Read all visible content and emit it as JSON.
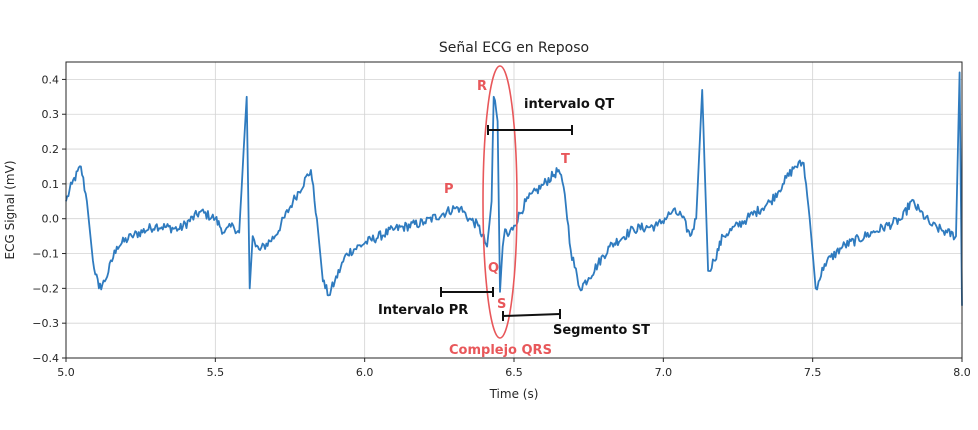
{
  "chart_data": {
    "type": "line",
    "title": "Señal ECG en Reposo",
    "xlabel": "Time (s)",
    "ylabel": "ECG Signal (mV)",
    "xlim": [
      5.0,
      8.0
    ],
    "ylim": [
      -0.4,
      0.45
    ],
    "xticks": [
      5.0,
      5.5,
      6.0,
      6.5,
      7.0,
      7.5,
      8.0
    ],
    "xtick_labels": [
      "5.0",
      "5.5",
      "6.0",
      "6.5",
      "7.0",
      "7.5",
      "8.0"
    ],
    "yticks": [
      -0.4,
      -0.3,
      -0.2,
      -0.1,
      0.0,
      0.1,
      0.2,
      0.3,
      0.4
    ],
    "ytick_labels": [
      "−0.4",
      "−0.3",
      "−0.2",
      "−0.1",
      "0.0",
      "0.1",
      "0.2",
      "0.3",
      "0.4"
    ],
    "grid": true,
    "line_color": "#2f7bbf",
    "annotation_color": "#e8575a",
    "series": [
      {
        "x": [
          5.0,
          5.02,
          5.05,
          5.07,
          5.09,
          5.11,
          5.13,
          5.17,
          5.22,
          5.3,
          5.38,
          5.45,
          5.5,
          5.53,
          5.56,
          5.58,
          5.595,
          5.605,
          5.615,
          5.625,
          5.635,
          5.65,
          5.7,
          5.76,
          5.82,
          5.84,
          5.86,
          5.88,
          5.9,
          5.94,
          6.0,
          6.1,
          6.2,
          6.3,
          6.32,
          6.35,
          6.38,
          6.41,
          6.425,
          6.432,
          6.445,
          6.453,
          6.462,
          6.47,
          6.48,
          6.5,
          6.54,
          6.6,
          6.65,
          6.67,
          6.69,
          6.72,
          6.75,
          6.82,
          6.9,
          6.98,
          7.03,
          7.06,
          7.09,
          7.11,
          7.13,
          7.15,
          7.17,
          7.2,
          7.28,
          7.36,
          7.4,
          7.44,
          7.47,
          7.49,
          7.51,
          7.52,
          7.54,
          7.6,
          7.7,
          7.8,
          7.83,
          7.86,
          7.9,
          7.95,
          7.98,
          7.992,
          8.0
        ],
        "y": [
          0.05,
          0.1,
          0.15,
          0.05,
          -0.12,
          -0.2,
          -0.18,
          -0.08,
          -0.05,
          -0.02,
          -0.03,
          0.02,
          0.0,
          -0.04,
          -0.02,
          -0.04,
          0.2,
          0.35,
          -0.2,
          -0.05,
          -0.08,
          -0.09,
          -0.05,
          0.05,
          0.14,
          0.0,
          -0.18,
          -0.22,
          -0.18,
          -0.1,
          -0.07,
          -0.03,
          -0.01,
          0.03,
          0.03,
          0.0,
          -0.02,
          -0.08,
          0.05,
          0.35,
          0.28,
          -0.21,
          -0.08,
          -0.03,
          -0.05,
          -0.02,
          0.05,
          0.1,
          0.14,
          0.07,
          -0.09,
          -0.2,
          -0.17,
          -0.08,
          -0.03,
          -0.02,
          0.02,
          0.01,
          -0.05,
          0.0,
          0.37,
          -0.15,
          -0.12,
          -0.05,
          0.0,
          0.05,
          0.1,
          0.15,
          0.16,
          0.0,
          -0.2,
          -0.18,
          -0.13,
          -0.08,
          -0.04,
          0.0,
          0.05,
          0.02,
          -0.02,
          -0.04,
          -0.05,
          0.42,
          -0.25
        ]
      }
    ],
    "annotations": {
      "r": "R",
      "q": "Q",
      "s": "S",
      "p": "P",
      "t": "T",
      "qt": "intervalo QT",
      "pr": "Intervalo PR",
      "st": "Segmento ST",
      "qrs": "Complejo QRS"
    }
  }
}
